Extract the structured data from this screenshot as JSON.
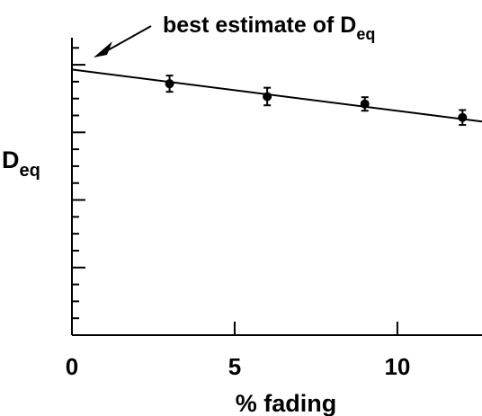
{
  "chart_data": {
    "type": "scatter",
    "x": [
      3,
      6,
      9,
      12
    ],
    "y": [
      3.72,
      3.53,
      3.42,
      3.22
    ],
    "y_error": [
      0.12,
      0.13,
      0.1,
      0.11
    ],
    "fit_line": {
      "x": [
        0,
        12.6
      ],
      "y": [
        3.93,
        3.16
      ]
    },
    "xlim": [
      0,
      12.6
    ],
    "ylim": [
      0,
      4.4
    ],
    "x_ticks": [
      0,
      5,
      10
    ],
    "x_tick_labels": [
      "0",
      "5",
      "10"
    ],
    "xlabel": "% fading",
    "ylabel": {
      "main": "D",
      "sub": "eq"
    },
    "annotation": {
      "text": "best estimate of D",
      "sub": "eq",
      "points_to_x": 0
    },
    "grid": false,
    "colors": {
      "ink": "#000000",
      "background": "#ffffff"
    }
  }
}
